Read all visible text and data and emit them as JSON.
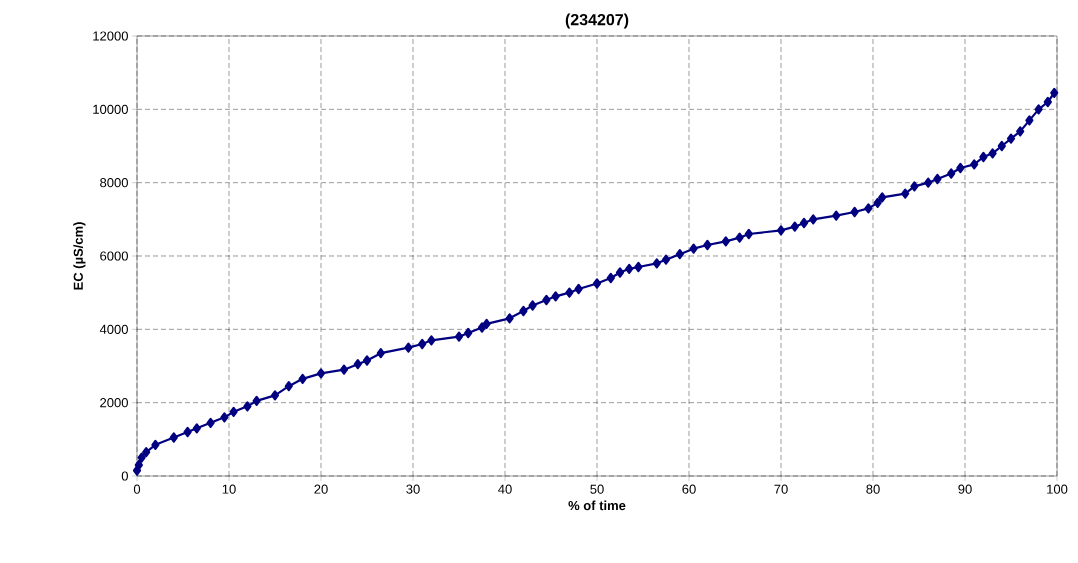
{
  "chart_data": {
    "type": "line",
    "title": "(234207)",
    "xlabel": "% of time",
    "ylabel": "EC (µS/cm)",
    "xlim": [
      0,
      100
    ],
    "ylim": [
      0,
      12000
    ],
    "xticks": [
      0,
      10,
      20,
      30,
      40,
      50,
      60,
      70,
      80,
      90,
      100
    ],
    "yticks": [
      0,
      2000,
      4000,
      6000,
      8000,
      10000,
      12000
    ],
    "grid": true,
    "marker": "diamond",
    "line_style": "solid",
    "x": [
      0,
      0.2,
      0.5,
      1,
      2,
      4,
      5.5,
      6.5,
      8,
      9.5,
      10.5,
      12,
      13,
      15,
      16.5,
      18,
      20,
      22.5,
      24,
      25,
      26.5,
      29.5,
      31,
      32,
      35,
      36,
      37.5,
      38,
      40.5,
      42,
      43,
      44.5,
      45.5,
      47,
      48,
      50,
      51.5,
      52.5,
      53.5,
      54.5,
      56.5,
      57.5,
      59,
      60.5,
      62,
      64,
      65.5,
      66.5,
      70,
      71.5,
      72.5,
      73.5,
      76,
      78,
      79.5,
      80.5,
      81,
      83.5,
      84.5,
      86,
      87,
      88.5,
      89.5,
      91,
      92,
      93,
      94,
      95,
      96,
      97,
      98,
      99,
      99.7
    ],
    "series": [
      {
        "color": "#000080",
        "values": [
          150,
          300,
          500,
          650,
          850,
          1050,
          1200,
          1300,
          1450,
          1600,
          1750,
          1900,
          2050,
          2200,
          2450,
          2650,
          2800,
          2900,
          3050,
          3150,
          3350,
          3500,
          3600,
          3700,
          3800,
          3900,
          4050,
          4150,
          4300,
          4500,
          4650,
          4800,
          4900,
          5000,
          5100,
          5250,
          5400,
          5550,
          5650,
          5700,
          5800,
          5900,
          6050,
          6200,
          6300,
          6400,
          6500,
          6600,
          6700,
          6800,
          6900,
          7000,
          7100,
          7200,
          7300,
          7450,
          7600,
          7700,
          7900,
          8000,
          8100,
          8250,
          8400,
          8500,
          8700,
          8800,
          9000,
          9200,
          9400,
          9700,
          10000,
          10200,
          10450
        ]
      }
    ]
  }
}
